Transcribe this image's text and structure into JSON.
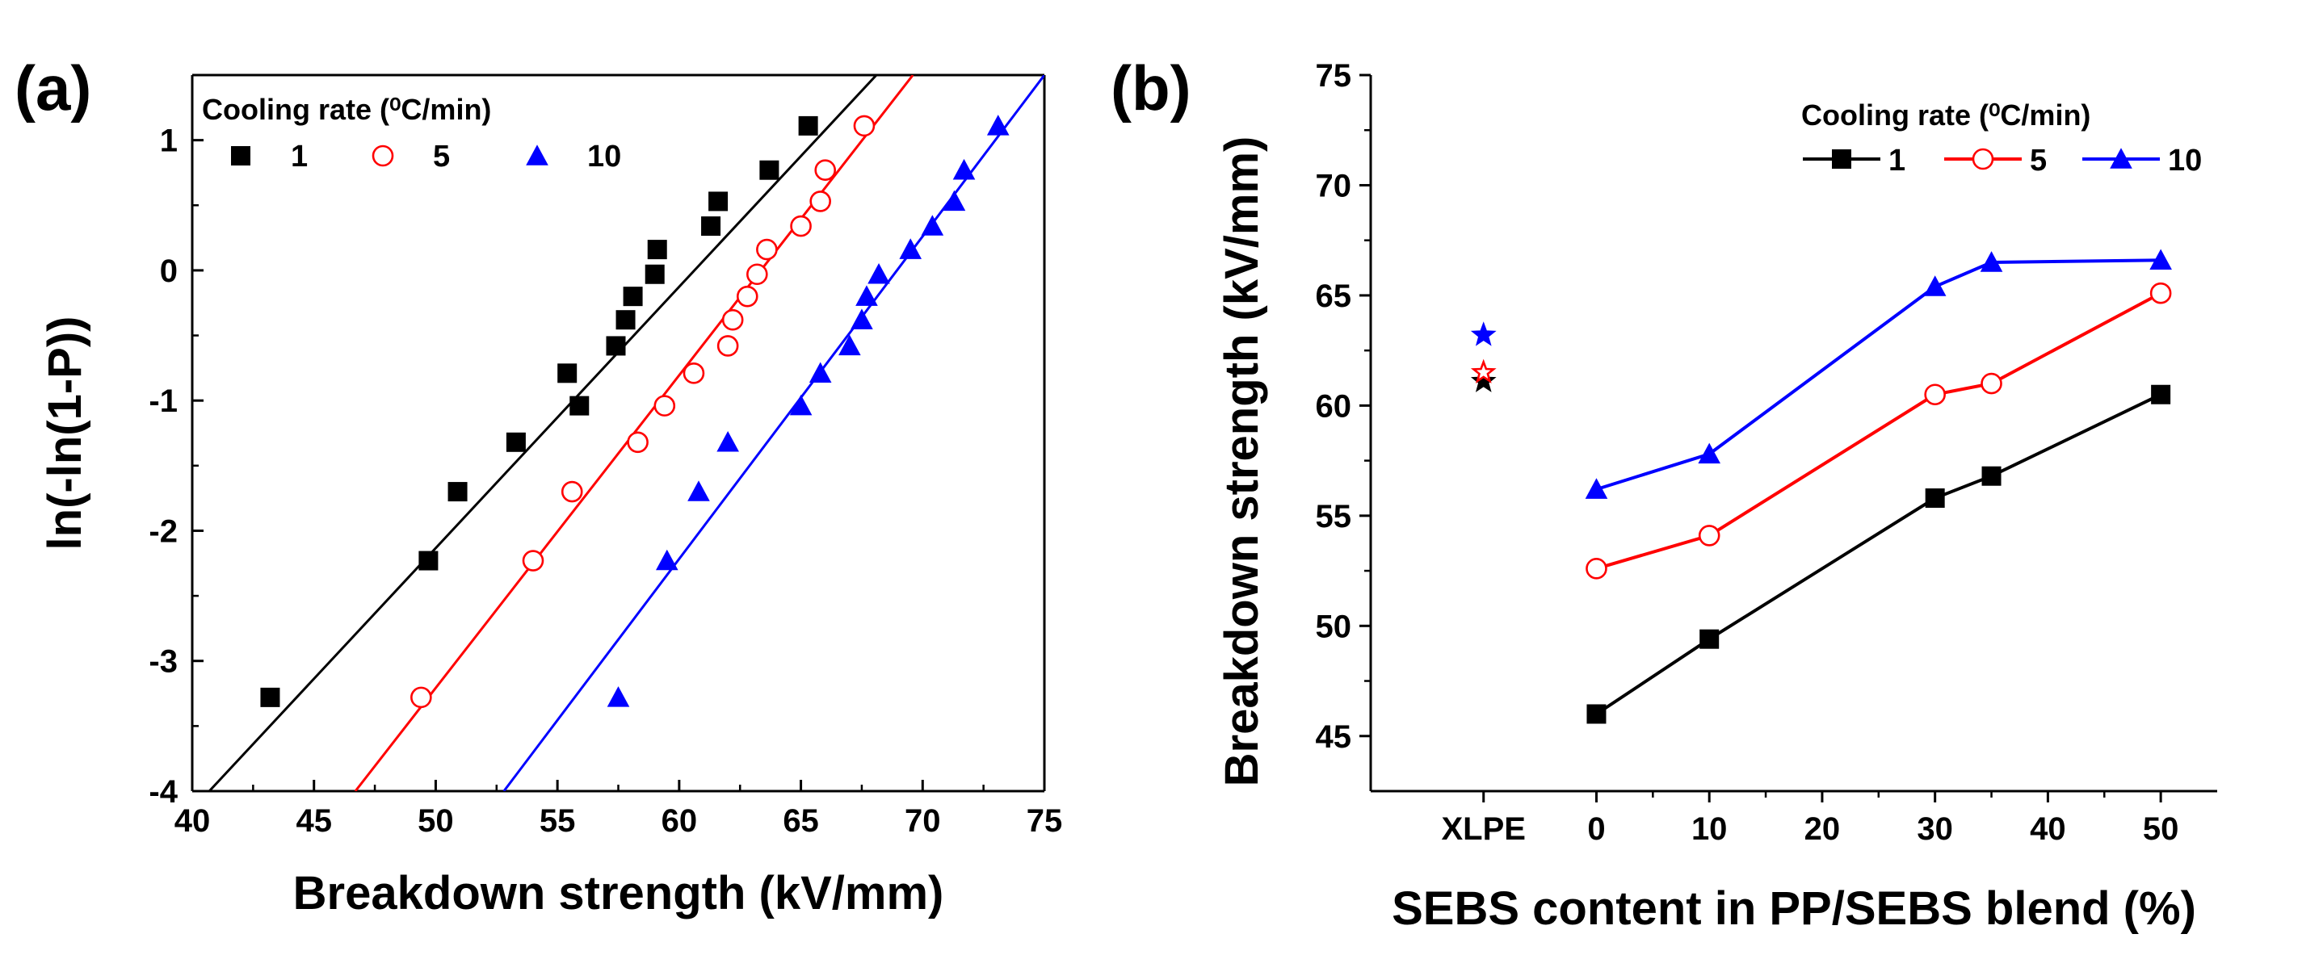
{
  "panels": {
    "a": {
      "label": "(a)"
    },
    "b": {
      "label": "(b)"
    }
  },
  "chart_data": [
    {
      "type": "scatter",
      "panel": "(a)",
      "title": "",
      "xlabel": "Breakdown strength (kV/mm)",
      "ylabel": "ln(-ln(1-P))",
      "xlim": [
        40,
        75
      ],
      "ylim": [
        -4,
        1.5
      ],
      "xticks": [
        40,
        45,
        50,
        55,
        60,
        65,
        70,
        75
      ],
      "yticks": [
        -4,
        -3,
        -2,
        -1,
        0,
        1
      ],
      "legend_title": "Cooling rate (⁰C/min)",
      "legend_position": "top-left",
      "series": [
        {
          "name": "1",
          "color": "#000000",
          "marker": "square-filled",
          "x": [
            43.2,
            49.7,
            50.9,
            53.3,
            55.4,
            55.9,
            57.4,
            57.8,
            58.1,
            59.0,
            59.1,
            61.3,
            61.6,
            63.7,
            65.3
          ],
          "y": [
            -3.28,
            -2.23,
            -1.7,
            -1.32,
            -0.79,
            -1.04,
            -0.58,
            -0.38,
            -0.2,
            -0.03,
            0.16,
            0.34,
            0.53,
            0.77,
            1.11
          ],
          "fit": {
            "x1": 40.7,
            "y1": -4.0,
            "x2": 68.1,
            "y2": 1.5
          }
        },
        {
          "name": "5",
          "color": "#ff0000",
          "marker": "circle-open",
          "x": [
            49.4,
            54.0,
            55.6,
            58.3,
            59.4,
            60.6,
            62.0,
            62.2,
            62.8,
            63.2,
            63.6,
            65.0,
            65.8,
            66.0,
            67.6
          ],
          "y": [
            -3.28,
            -2.23,
            -1.7,
            -1.32,
            -1.04,
            -0.79,
            -0.58,
            -0.38,
            -0.2,
            -0.03,
            0.16,
            0.34,
            0.53,
            0.77,
            1.11
          ],
          "fit": {
            "x1": 46.7,
            "y1": -4.0,
            "x2": 69.6,
            "y2": 1.5
          }
        },
        {
          "name": "10",
          "color": "#0000ff",
          "marker": "triangle-filled",
          "x": [
            57.5,
            59.5,
            60.8,
            62.0,
            65.0,
            65.8,
            67.0,
            67.5,
            67.7,
            68.2,
            69.5,
            70.4,
            71.3,
            71.7,
            73.1
          ],
          "y": [
            -3.28,
            -2.23,
            -1.7,
            -1.32,
            -1.04,
            -0.79,
            -0.58,
            -0.38,
            -0.2,
            -0.03,
            0.16,
            0.34,
            0.53,
            0.77,
            1.11
          ],
          "fit": {
            "x1": 52.8,
            "y1": -4.0,
            "x2": 75.0,
            "y2": 1.5
          }
        }
      ]
    },
    {
      "type": "line",
      "panel": "(b)",
      "title": "",
      "xlabel": "SEBS content in PP/SEBS blend (%)",
      "ylabel": "Breakdown strength (kV/mm)",
      "xlim": [
        -20,
        55
      ],
      "ylim": [
        42.5,
        75
      ],
      "xticks": [
        0,
        10,
        20,
        30,
        40,
        50
      ],
      "yticks": [
        45,
        50,
        55,
        60,
        65,
        70,
        75
      ],
      "extra_xtick": {
        "label": "XLPE",
        "x": -10
      },
      "legend_title": "Cooling rate (⁰C/min)",
      "legend_position": "top-right",
      "xlpe_reference": [
        {
          "series": "1",
          "value": 61.1,
          "color": "#000000"
        },
        {
          "series": "5",
          "value": 61.5,
          "color": "#ff0000"
        },
        {
          "series": "10",
          "value": 63.2,
          "color": "#0000ff"
        }
      ],
      "series": [
        {
          "name": "1",
          "color": "#000000",
          "marker": "square-filled",
          "x": [
            0,
            10,
            30,
            35,
            50
          ],
          "values": [
            46.0,
            49.4,
            55.8,
            56.8,
            60.5
          ]
        },
        {
          "name": "5",
          "color": "#ff0000",
          "marker": "circle-open",
          "x": [
            0,
            10,
            30,
            35,
            50
          ],
          "values": [
            52.6,
            54.1,
            60.5,
            61.0,
            65.1
          ]
        },
        {
          "name": "10",
          "color": "#0000ff",
          "marker": "triangle-filled",
          "x": [
            0,
            10,
            30,
            35,
            50
          ],
          "values": [
            56.2,
            57.8,
            65.4,
            66.5,
            66.6
          ]
        }
      ]
    }
  ]
}
